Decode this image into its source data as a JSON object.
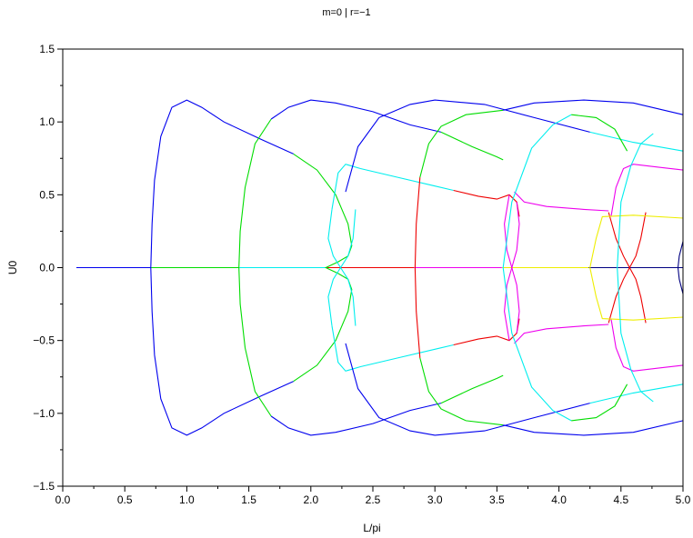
{
  "chart_data": {
    "type": "line",
    "title": "m=0 | r=−1",
    "xlabel": "L/pi",
    "ylabel": "U0",
    "xlim": [
      0.0,
      5.0
    ],
    "ylim": [
      -1.5,
      1.5
    ],
    "xticks": [
      "0.0",
      "0.5",
      "1.0",
      "1.5",
      "2.0",
      "2.5",
      "3.0",
      "3.5",
      "4.0",
      "4.5",
      "5.0"
    ],
    "yticks": [
      "−1.5",
      "−1.0",
      "−0.5",
      "0.0",
      "0.5",
      "1.0",
      "1.5"
    ],
    "grid": false,
    "colors": {
      "blue": "#0000ee",
      "green": "#00dd00",
      "cyan": "#00eeee",
      "red": "#ee0000",
      "magenta": "#ee00ee",
      "yellow": "#eeee00",
      "navy": "#000080"
    },
    "series": [
      {
        "color": "blue",
        "points": [
          [
            0.11,
            0.0
          ],
          [
            0.71,
            0.0
          ]
        ]
      },
      {
        "color": "green",
        "points": [
          [
            0.71,
            0.0
          ],
          [
            1.42,
            0.0
          ]
        ]
      },
      {
        "color": "cyan",
        "points": [
          [
            1.42,
            0.0
          ],
          [
            2.12,
            0.0
          ]
        ]
      },
      {
        "color": "red",
        "points": [
          [
            2.12,
            0.0
          ],
          [
            2.83,
            0.0
          ]
        ]
      },
      {
        "color": "magenta",
        "points": [
          [
            2.83,
            0.0
          ],
          [
            3.54,
            0.0
          ]
        ]
      },
      {
        "color": "yellow",
        "points": [
          [
            3.54,
            0.0
          ],
          [
            4.24,
            0.0
          ]
        ]
      },
      {
        "color": "navy",
        "points": [
          [
            4.24,
            0.0
          ],
          [
            5.0,
            0.0
          ]
        ]
      },
      {
        "color": "blue",
        "points": [
          [
            1.86,
            -0.78
          ],
          [
            1.6,
            -0.88
          ],
          [
            1.3,
            -1.0
          ],
          [
            1.12,
            -1.1
          ],
          [
            1.0,
            -1.15
          ],
          [
            0.88,
            -1.1
          ],
          [
            0.79,
            -0.9
          ],
          [
            0.74,
            -0.6
          ],
          [
            0.72,
            -0.3
          ],
          [
            0.71,
            0.0
          ],
          [
            0.72,
            0.3
          ],
          [
            0.74,
            0.6
          ],
          [
            0.79,
            0.9
          ],
          [
            0.88,
            1.1
          ],
          [
            1.0,
            1.15
          ],
          [
            1.12,
            1.1
          ],
          [
            1.3,
            1.0
          ],
          [
            1.6,
            0.88
          ],
          [
            1.86,
            0.78
          ]
        ]
      },
      {
        "color": "green",
        "points": [
          [
            1.86,
            0.78
          ],
          [
            2.05,
            0.67
          ],
          [
            2.2,
            0.5
          ],
          [
            2.3,
            0.3
          ],
          [
            2.33,
            0.15
          ],
          [
            2.3,
            0.08
          ],
          [
            2.22,
            0.04
          ],
          [
            2.12,
            0.0
          ],
          [
            2.22,
            -0.04
          ],
          [
            2.3,
            -0.08
          ],
          [
            2.33,
            -0.15
          ],
          [
            2.3,
            -0.3
          ],
          [
            2.2,
            -0.5
          ],
          [
            2.05,
            -0.67
          ],
          [
            1.86,
            -0.78
          ]
        ]
      },
      {
        "color": "green",
        "points": [
          [
            1.68,
            -1.02
          ],
          [
            1.55,
            -0.85
          ],
          [
            1.47,
            -0.55
          ],
          [
            1.43,
            -0.25
          ],
          [
            1.42,
            0.0
          ],
          [
            1.43,
            0.25
          ],
          [
            1.47,
            0.55
          ],
          [
            1.55,
            0.85
          ],
          [
            1.68,
            1.02
          ]
        ]
      },
      {
        "color": "blue",
        "points": [
          [
            1.68,
            1.02
          ],
          [
            1.82,
            1.1
          ],
          [
            2.0,
            1.15
          ],
          [
            2.2,
            1.13
          ],
          [
            2.5,
            1.07
          ],
          [
            2.8,
            0.98
          ],
          [
            3.05,
            0.93
          ]
        ]
      },
      {
        "color": "blue",
        "points": [
          [
            1.68,
            -1.02
          ],
          [
            1.82,
            -1.1
          ],
          [
            2.0,
            -1.15
          ],
          [
            2.2,
            -1.13
          ],
          [
            2.5,
            -1.07
          ],
          [
            2.8,
            -0.98
          ],
          [
            3.05,
            -0.93
          ]
        ]
      },
      {
        "color": "green",
        "points": [
          [
            3.05,
            0.93
          ],
          [
            3.3,
            0.83
          ],
          [
            3.5,
            0.76
          ],
          [
            3.55,
            0.74
          ]
        ]
      },
      {
        "color": "green",
        "points": [
          [
            3.05,
            -0.93
          ],
          [
            3.3,
            -0.83
          ],
          [
            3.5,
            -0.76
          ],
          [
            3.55,
            -0.74
          ]
        ]
      },
      {
        "color": "cyan",
        "points": [
          [
            2.17,
            0.4
          ],
          [
            2.22,
            0.65
          ],
          [
            2.28,
            0.71
          ],
          [
            2.4,
            0.68
          ],
          [
            2.7,
            0.62
          ],
          [
            3.0,
            0.56
          ],
          [
            3.15,
            0.53
          ]
        ]
      },
      {
        "color": "cyan",
        "points": [
          [
            2.17,
            -0.4
          ],
          [
            2.22,
            -0.65
          ],
          [
            2.28,
            -0.71
          ],
          [
            2.4,
            -0.68
          ],
          [
            2.7,
            -0.62
          ],
          [
            3.0,
            -0.56
          ],
          [
            3.15,
            -0.53
          ]
        ]
      },
      {
        "color": "cyan",
        "points": [
          [
            2.17,
            0.4
          ],
          [
            2.14,
            0.2
          ],
          [
            2.18,
            0.08
          ],
          [
            2.24,
            0.0
          ],
          [
            2.3,
            -0.08
          ],
          [
            2.34,
            -0.2
          ],
          [
            2.36,
            -0.4
          ]
        ]
      },
      {
        "color": "cyan",
        "points": [
          [
            2.17,
            -0.4
          ],
          [
            2.14,
            -0.2
          ],
          [
            2.18,
            -0.08
          ],
          [
            2.24,
            0.0
          ],
          [
            2.3,
            0.08
          ],
          [
            2.34,
            0.2
          ],
          [
            2.36,
            0.4
          ]
        ]
      },
      {
        "color": "red",
        "points": [
          [
            3.15,
            0.53
          ],
          [
            3.35,
            0.49
          ],
          [
            3.5,
            0.47
          ],
          [
            3.6,
            0.5
          ],
          [
            3.66,
            0.45
          ],
          [
            3.68,
            0.35
          ]
        ]
      },
      {
        "color": "red",
        "points": [
          [
            3.15,
            -0.53
          ],
          [
            3.35,
            -0.49
          ],
          [
            3.5,
            -0.47
          ],
          [
            3.6,
            -0.5
          ],
          [
            3.66,
            -0.45
          ],
          [
            3.68,
            -0.35
          ]
        ]
      },
      {
        "color": "blue",
        "points": [
          [
            2.28,
            0.52
          ],
          [
            2.38,
            0.83
          ],
          [
            2.55,
            1.03
          ],
          [
            2.8,
            1.12
          ],
          [
            3.0,
            1.15
          ],
          [
            3.4,
            1.12
          ],
          [
            3.8,
            1.03
          ],
          [
            4.25,
            0.93
          ]
        ]
      },
      {
        "color": "blue",
        "points": [
          [
            2.28,
            -0.52
          ],
          [
            2.38,
            -0.83
          ],
          [
            2.55,
            -1.03
          ],
          [
            2.8,
            -1.12
          ],
          [
            3.0,
            -1.15
          ],
          [
            3.4,
            -1.12
          ],
          [
            3.8,
            -1.03
          ],
          [
            4.25,
            -0.93
          ]
        ]
      },
      {
        "color": "cyan",
        "points": [
          [
            4.25,
            0.93
          ],
          [
            4.6,
            0.86
          ],
          [
            5.0,
            0.8
          ]
        ]
      },
      {
        "color": "cyan",
        "points": [
          [
            4.25,
            -0.93
          ],
          [
            4.6,
            -0.86
          ],
          [
            5.0,
            -0.8
          ]
        ]
      },
      {
        "color": "red",
        "points": [
          [
            2.88,
            -0.62
          ],
          [
            2.85,
            -0.3
          ],
          [
            2.84,
            0.0
          ],
          [
            2.85,
            0.3
          ],
          [
            2.88,
            0.62
          ]
        ]
      },
      {
        "color": "green",
        "points": [
          [
            2.88,
            0.62
          ],
          [
            2.95,
            0.85
          ],
          [
            3.05,
            0.97
          ],
          [
            3.25,
            1.05
          ],
          [
            3.55,
            1.08
          ]
        ]
      },
      {
        "color": "green",
        "points": [
          [
            2.88,
            -0.62
          ],
          [
            2.95,
            -0.85
          ],
          [
            3.05,
            -0.97
          ],
          [
            3.25,
            -1.05
          ],
          [
            3.55,
            -1.08
          ]
        ]
      },
      {
        "color": "blue",
        "points": [
          [
            3.55,
            1.08
          ],
          [
            3.8,
            1.13
          ],
          [
            4.2,
            1.15
          ],
          [
            4.6,
            1.13
          ],
          [
            5.0,
            1.05
          ]
        ]
      },
      {
        "color": "blue",
        "points": [
          [
            3.55,
            -1.08
          ],
          [
            3.8,
            -1.13
          ],
          [
            4.2,
            -1.15
          ],
          [
            4.6,
            -1.13
          ],
          [
            5.0,
            -1.05
          ]
        ]
      },
      {
        "color": "magenta",
        "points": [
          [
            3.6,
            0.5
          ],
          [
            3.56,
            0.3
          ],
          [
            3.58,
            0.12
          ],
          [
            3.62,
            0.0
          ],
          [
            3.66,
            -0.12
          ],
          [
            3.68,
            -0.3
          ],
          [
            3.66,
            -0.45
          ]
        ]
      },
      {
        "color": "magenta",
        "points": [
          [
            3.6,
            -0.5
          ],
          [
            3.56,
            -0.3
          ],
          [
            3.58,
            -0.12
          ],
          [
            3.62,
            0.0
          ],
          [
            3.66,
            0.12
          ],
          [
            3.68,
            0.3
          ],
          [
            3.66,
            0.45
          ]
        ]
      },
      {
        "color": "magenta",
        "points": [
          [
            3.64,
            0.52
          ],
          [
            3.72,
            0.45
          ],
          [
            3.9,
            0.42
          ],
          [
            4.2,
            0.4
          ],
          [
            4.4,
            0.39
          ]
        ]
      },
      {
        "color": "magenta",
        "points": [
          [
            3.64,
            -0.52
          ],
          [
            3.72,
            -0.45
          ],
          [
            3.9,
            -0.42
          ],
          [
            4.2,
            -0.4
          ],
          [
            4.4,
            -0.39
          ]
        ]
      },
      {
        "color": "cyan",
        "points": [
          [
            3.55,
            0.0
          ],
          [
            3.62,
            0.45
          ],
          [
            3.78,
            0.82
          ],
          [
            3.95,
            0.98
          ],
          [
            4.1,
            1.05
          ]
        ]
      },
      {
        "color": "cyan",
        "points": [
          [
            3.55,
            0.0
          ],
          [
            3.62,
            -0.45
          ],
          [
            3.78,
            -0.82
          ],
          [
            3.95,
            -0.98
          ],
          [
            4.1,
            -1.05
          ]
        ]
      },
      {
        "color": "green",
        "points": [
          [
            4.1,
            1.05
          ],
          [
            4.3,
            1.03
          ],
          [
            4.45,
            0.95
          ],
          [
            4.55,
            0.8
          ]
        ]
      },
      {
        "color": "green",
        "points": [
          [
            4.1,
            -1.05
          ],
          [
            4.3,
            -1.03
          ],
          [
            4.45,
            -0.95
          ],
          [
            4.55,
            -0.8
          ]
        ]
      },
      {
        "color": "magenta",
        "points": [
          [
            4.42,
            0.35
          ],
          [
            4.46,
            0.55
          ],
          [
            4.52,
            0.68
          ],
          [
            4.6,
            0.71
          ],
          [
            4.8,
            0.69
          ],
          [
            5.0,
            0.67
          ]
        ]
      },
      {
        "color": "magenta",
        "points": [
          [
            4.42,
            -0.35
          ],
          [
            4.46,
            -0.55
          ],
          [
            4.52,
            -0.68
          ],
          [
            4.6,
            -0.71
          ],
          [
            4.8,
            -0.69
          ],
          [
            5.0,
            -0.67
          ]
        ]
      },
      {
        "color": "red",
        "points": [
          [
            4.4,
            0.38
          ],
          [
            4.46,
            0.2
          ],
          [
            4.52,
            0.08
          ],
          [
            4.57,
            0.0
          ],
          [
            4.62,
            -0.08
          ],
          [
            4.66,
            -0.2
          ],
          [
            4.7,
            -0.38
          ]
        ]
      },
      {
        "color": "red",
        "points": [
          [
            4.4,
            -0.38
          ],
          [
            4.46,
            -0.2
          ],
          [
            4.52,
            -0.08
          ],
          [
            4.57,
            0.0
          ],
          [
            4.62,
            0.08
          ],
          [
            4.66,
            0.2
          ],
          [
            4.7,
            0.38
          ]
        ]
      },
      {
        "color": "yellow",
        "points": [
          [
            4.25,
            0.0
          ],
          [
            4.3,
            0.2
          ],
          [
            4.35,
            0.35
          ],
          [
            4.6,
            0.36
          ],
          [
            5.0,
            0.34
          ]
        ]
      },
      {
        "color": "yellow",
        "points": [
          [
            4.25,
            0.0
          ],
          [
            4.3,
            -0.2
          ],
          [
            4.35,
            -0.35
          ],
          [
            4.6,
            -0.36
          ],
          [
            5.0,
            -0.34
          ]
        ]
      },
      {
        "color": "navy",
        "points": [
          [
            5.0,
            0.18
          ],
          [
            4.97,
            0.08
          ],
          [
            4.96,
            0.0
          ],
          [
            4.97,
            -0.08
          ],
          [
            5.0,
            -0.18
          ]
        ]
      },
      {
        "color": "cyan",
        "points": [
          [
            4.47,
            0.0
          ],
          [
            4.5,
            0.45
          ],
          [
            4.58,
            0.7
          ],
          [
            4.66,
            0.85
          ],
          [
            4.76,
            0.92
          ]
        ]
      },
      {
        "color": "cyan",
        "points": [
          [
            4.47,
            0.0
          ],
          [
            4.5,
            -0.45
          ],
          [
            4.58,
            -0.7
          ],
          [
            4.66,
            -0.85
          ],
          [
            4.76,
            -0.92
          ]
        ]
      }
    ]
  }
}
